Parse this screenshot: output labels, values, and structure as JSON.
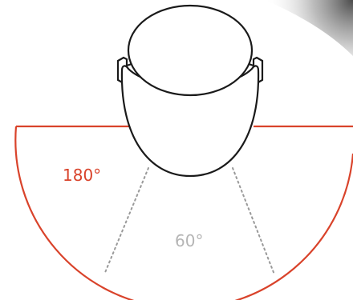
{
  "labels": {
    "wide_angle": "180°",
    "narrow_angle": "60°"
  },
  "colors": {
    "background": "#ffffff",
    "wide_field": "#d9432b",
    "narrow_field": "#9a9a9a",
    "narrow_label": "#b5b5b5",
    "head_outline": "#1a1a1a"
  },
  "angles": {
    "wide_degrees": 180,
    "narrow_degrees": 60
  }
}
